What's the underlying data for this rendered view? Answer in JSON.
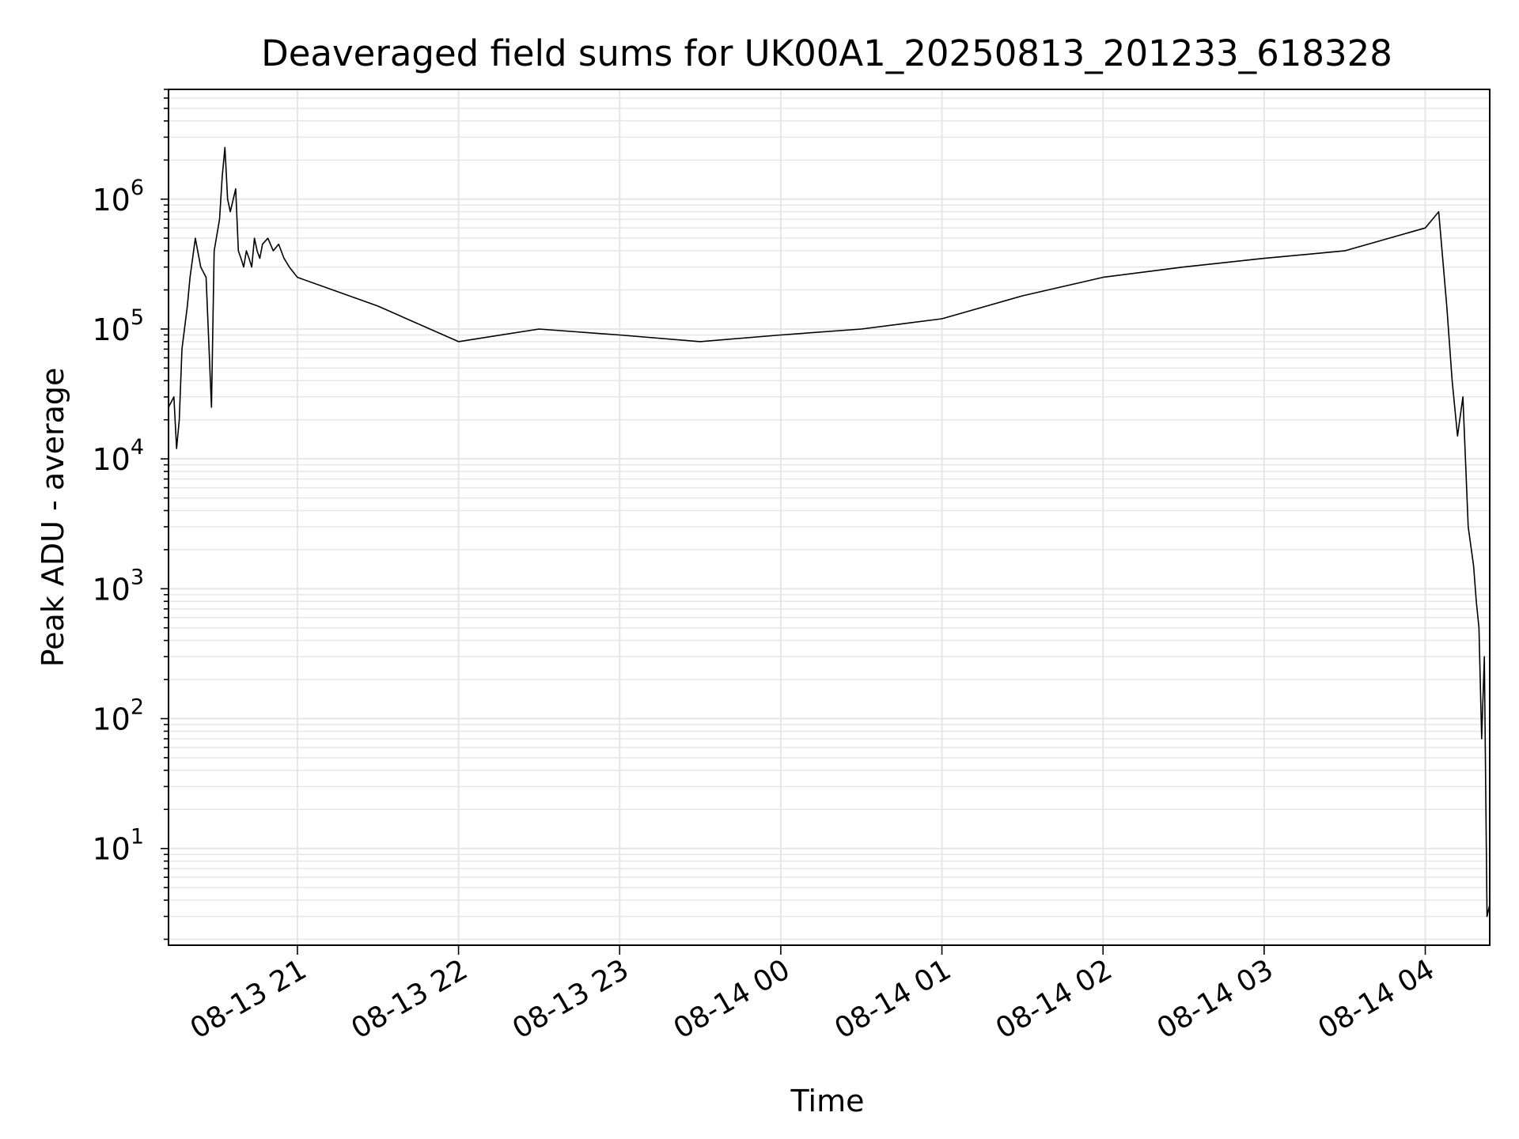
{
  "chart_data": {
    "type": "line",
    "title": "Deaveraged field sums for UK00A1_20250813_201233_618328",
    "xlabel": "Time",
    "ylabel": "Peak ADU - average",
    "yscale": "log",
    "ylim": [
      1.8,
      7000000
    ],
    "xlim": [
      "2025-08-13 20:12",
      "2025-08-14 04:24"
    ],
    "x_ticks": [
      {
        "value": "2025-08-13 21:00",
        "label": "08-13 21"
      },
      {
        "value": "2025-08-13 22:00",
        "label": "08-13 22"
      },
      {
        "value": "2025-08-13 23:00",
        "label": "08-13 23"
      },
      {
        "value": "2025-08-14 00:00",
        "label": "08-14 00"
      },
      {
        "value": "2025-08-14 01:00",
        "label": "08-14 01"
      },
      {
        "value": "2025-08-14 02:00",
        "label": "08-14 02"
      },
      {
        "value": "2025-08-14 03:00",
        "label": "08-14 03"
      },
      {
        "value": "2025-08-14 04:00",
        "label": "08-14 04"
      }
    ],
    "y_ticks": [
      {
        "value": 10,
        "base": "10",
        "exp": "1"
      },
      {
        "value": 100,
        "base": "10",
        "exp": "2"
      },
      {
        "value": 1000,
        "base": "10",
        "exp": "3"
      },
      {
        "value": 10000,
        "base": "10",
        "exp": "4"
      },
      {
        "value": 100000,
        "base": "10",
        "exp": "5"
      },
      {
        "value": 1000000,
        "base": "10",
        "exp": "6"
      }
    ],
    "grid": true,
    "line_color": "#000000",
    "grid_color": "#e6e6e6",
    "series": [
      {
        "x": [
          "2025-08-13 20:12",
          "2025-08-13 20:14",
          "2025-08-13 20:15",
          "2025-08-13 20:16",
          "2025-08-13 20:17",
          "2025-08-13 20:19",
          "2025-08-13 20:20",
          "2025-08-13 20:22",
          "2025-08-13 20:24",
          "2025-08-13 20:26",
          "2025-08-13 20:28",
          "2025-08-13 20:29",
          "2025-08-13 20:31",
          "2025-08-13 20:32",
          "2025-08-13 20:33",
          "2025-08-13 20:34",
          "2025-08-13 20:35",
          "2025-08-13 20:37",
          "2025-08-13 20:38",
          "2025-08-13 20:39",
          "2025-08-13 20:40",
          "2025-08-13 20:41",
          "2025-08-13 20:42",
          "2025-08-13 20:43",
          "2025-08-13 20:44",
          "2025-08-13 20:45",
          "2025-08-13 20:46",
          "2025-08-13 20:47",
          "2025-08-13 20:49",
          "2025-08-13 20:51",
          "2025-08-13 20:53",
          "2025-08-13 20:55",
          "2025-08-13 20:57",
          "2025-08-13 21:00",
          "2025-08-13 21:30",
          "2025-08-13 22:00",
          "2025-08-13 22:30",
          "2025-08-13 23:00",
          "2025-08-13 23:30",
          "2025-08-14 00:00",
          "2025-08-14 00:30",
          "2025-08-14 01:00",
          "2025-08-14 01:30",
          "2025-08-14 02:00",
          "2025-08-14 02:30",
          "2025-08-14 03:00",
          "2025-08-14 03:30",
          "2025-08-14 04:00",
          "2025-08-14 04:05",
          "2025-08-14 04:08",
          "2025-08-14 04:10",
          "2025-08-14 04:12",
          "2025-08-14 04:14",
          "2025-08-14 04:16",
          "2025-08-14 04:18",
          "2025-08-14 04:19",
          "2025-08-14 04:20",
          "2025-08-14 04:21",
          "2025-08-14 04:22",
          "2025-08-14 04:23",
          "2025-08-14 04:24"
        ],
        "y": [
          25000,
          30000,
          12000,
          20000,
          70000,
          150000,
          250000,
          500000,
          300000,
          250000,
          25000,
          400000,
          700000,
          1500000,
          2500000,
          1000000,
          800000,
          1200000,
          400000,
          350000,
          300000,
          400000,
          350000,
          300000,
          500000,
          400000,
          350000,
          450000,
          500000,
          400000,
          450000,
          350000,
          300000,
          250000,
          150000,
          80000,
          100000,
          90000,
          80000,
          90000,
          100000,
          120000,
          180000,
          250000,
          300000,
          350000,
          400000,
          600000,
          800000,
          150000,
          40000,
          15000,
          30000,
          3000,
          1500,
          800,
          500,
          70,
          300,
          3,
          3.7
        ]
      }
    ]
  }
}
